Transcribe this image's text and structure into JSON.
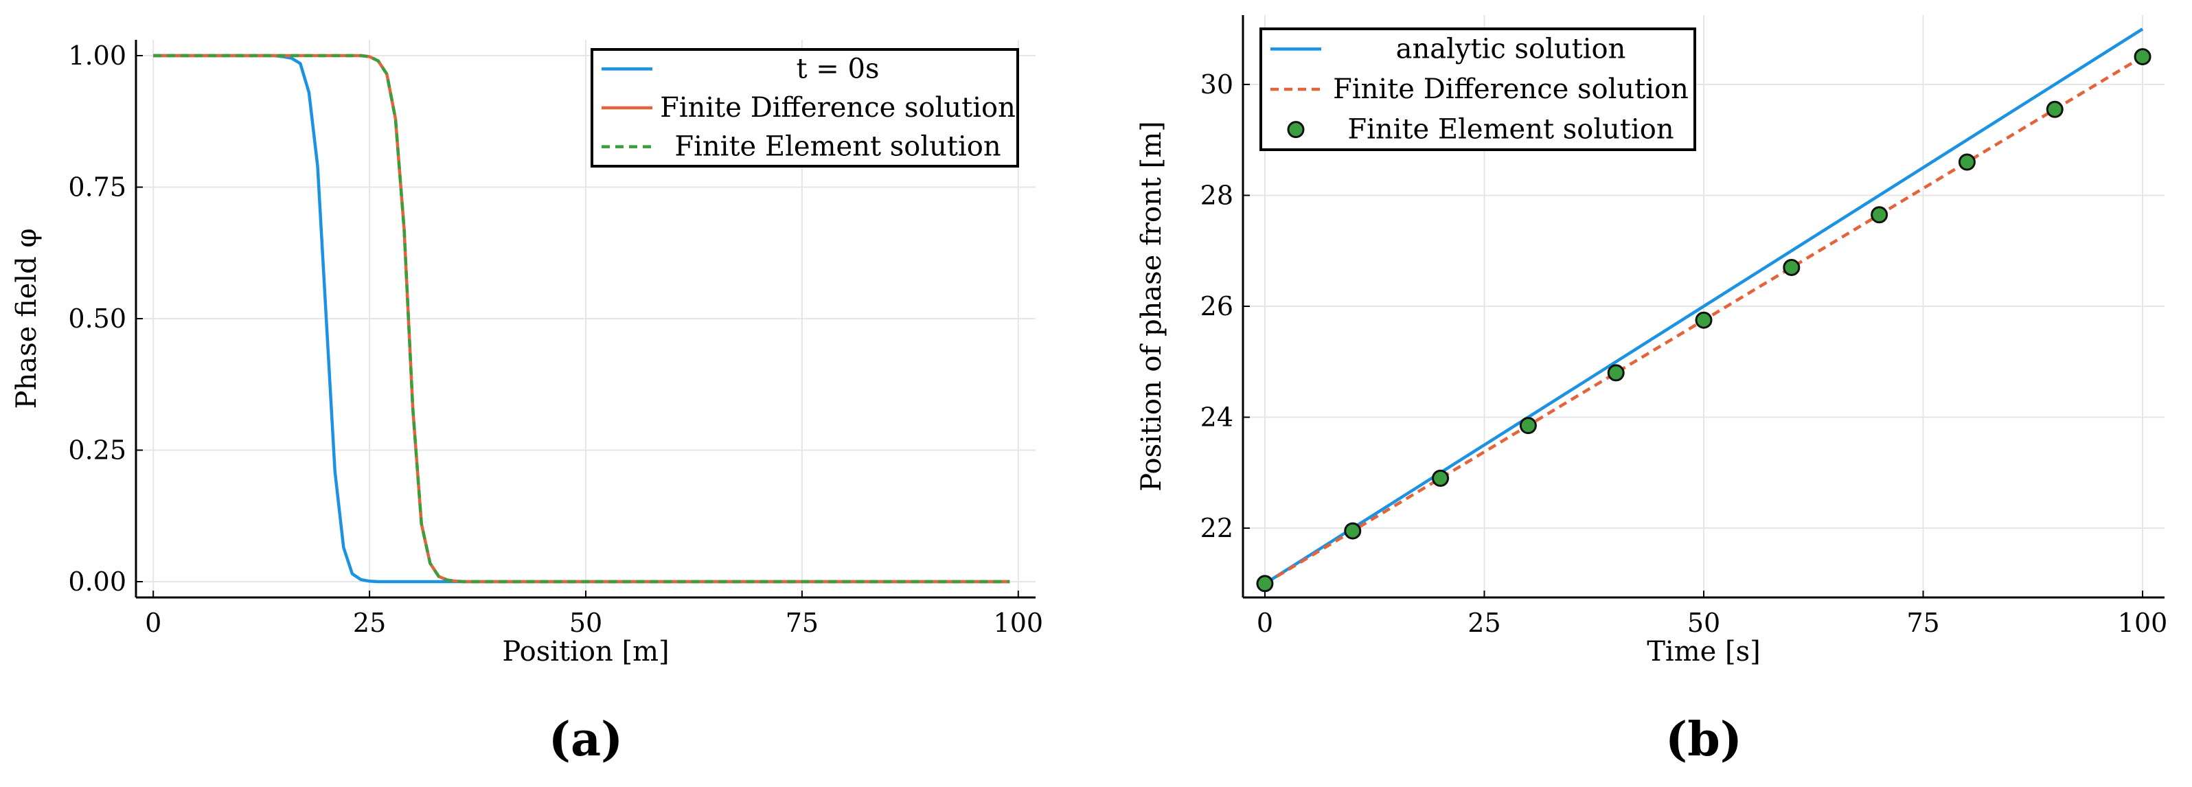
{
  "chart_data": [
    {
      "panel_label": "(a)",
      "type": "line",
      "xlabel": "Position [m]",
      "ylabel": "Phase field φ",
      "xlim": [
        -2,
        102
      ],
      "ylim": [
        -0.03,
        1.03
      ],
      "xticks": [
        0,
        25,
        50,
        75,
        100
      ],
      "yticks": [
        0.0,
        0.25,
        0.5,
        0.75,
        1.0
      ],
      "xtick_labels": [
        "0",
        "25",
        "50",
        "75",
        "100"
      ],
      "ytick_labels": [
        "0.00",
        "0.25",
        "0.50",
        "0.75",
        "1.00"
      ],
      "grid": true,
      "legend_position": "top-right",
      "series": [
        {
          "name": "t = 0s",
          "color": "#1c92e3",
          "style": "solid",
          "x": [
            0,
            14,
            15,
            16,
            17,
            18,
            19,
            20,
            21,
            22,
            23,
            24,
            25,
            26,
            99
          ],
          "y": [
            1.0,
            1.0,
            0.998,
            0.995,
            0.985,
            0.93,
            0.79,
            0.5,
            0.21,
            0.065,
            0.015,
            0.004,
            0.001,
            0.0,
            0.0
          ]
        },
        {
          "name": "Finite Difference solution",
          "color": "#e3643a",
          "style": "solid",
          "x": [
            0,
            24,
            25,
            26,
            27,
            28,
            29,
            30,
            31,
            32,
            33,
            34,
            35,
            36,
            99
          ],
          "y": [
            1.0,
            1.0,
            0.998,
            0.99,
            0.965,
            0.88,
            0.67,
            0.33,
            0.11,
            0.035,
            0.01,
            0.003,
            0.001,
            0.0,
            0.0
          ]
        },
        {
          "name": "Finite Element solution",
          "color": "#3a9e3e",
          "style": "dashed",
          "x": [
            0,
            24,
            25,
            26,
            27,
            28,
            29,
            30,
            31,
            32,
            33,
            34,
            35,
            36,
            99
          ],
          "y": [
            1.0,
            1.0,
            0.998,
            0.99,
            0.965,
            0.88,
            0.67,
            0.33,
            0.11,
            0.035,
            0.01,
            0.003,
            0.001,
            0.0,
            0.0
          ]
        }
      ]
    },
    {
      "panel_label": "(b)",
      "type": "line",
      "xlabel": "Time [s]",
      "ylabel": "Position of phase front [m]",
      "xlim": [
        -2.5,
        102.5
      ],
      "ylim": [
        20.75,
        31.25
      ],
      "xticks": [
        0,
        25,
        50,
        75,
        100
      ],
      "yticks": [
        22,
        24,
        26,
        28,
        30
      ],
      "xtick_labels": [
        "0",
        "25",
        "50",
        "75",
        "100"
      ],
      "ytick_labels": [
        "22",
        "24",
        "26",
        "28",
        "30"
      ],
      "grid": true,
      "legend_position": "top-left",
      "series": [
        {
          "name": "analytic solution",
          "color": "#1c92e3",
          "style": "solid",
          "x": [
            0,
            100
          ],
          "y": [
            21.0,
            31.0
          ]
        },
        {
          "name": "Finite Difference solution",
          "color": "#e3643a",
          "style": "dashed",
          "x": [
            0,
            10,
            20,
            30,
            40,
            50,
            60,
            70,
            80,
            90,
            100
          ],
          "y": [
            21.0,
            21.95,
            22.9,
            23.85,
            24.8,
            25.75,
            26.7,
            27.65,
            28.6,
            29.55,
            30.5
          ]
        },
        {
          "name": "Finite Element solution",
          "color": "#3a9e3e",
          "style": "markers",
          "x": [
            0,
            10,
            20,
            30,
            40,
            50,
            60,
            70,
            80,
            90,
            100
          ],
          "y": [
            21.0,
            21.95,
            22.9,
            23.85,
            24.8,
            25.75,
            26.7,
            27.65,
            28.6,
            29.55,
            30.5
          ]
        }
      ]
    }
  ]
}
